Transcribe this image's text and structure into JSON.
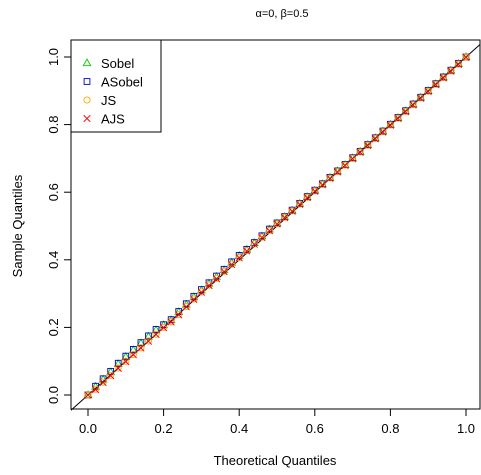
{
  "chart_data": {
    "type": "scatter",
    "title": "α=0, β=0.5",
    "xlabel": "Theoretical Quantiles",
    "ylabel": "Sample Quantiles",
    "xlim": [
      0,
      1
    ],
    "ylim": [
      0,
      1
    ],
    "xticks": [
      "0.0",
      "0.2",
      "0.4",
      "0.6",
      "0.8",
      "1.0"
    ],
    "yticks": [
      "0.0",
      "0.2",
      "0.4",
      "0.6",
      "0.8",
      "1.0"
    ],
    "reference_line": {
      "slope": 1,
      "intercept": 0,
      "color": "#000000"
    },
    "legend_position": "top-left",
    "x": [
      0.0,
      0.02,
      0.04,
      0.06,
      0.08,
      0.1,
      0.12,
      0.14,
      0.16,
      0.18,
      0.2,
      0.22,
      0.24,
      0.26,
      0.28,
      0.3,
      0.32,
      0.34,
      0.36,
      0.38,
      0.4,
      0.42,
      0.44,
      0.46,
      0.48,
      0.5,
      0.52,
      0.54,
      0.56,
      0.58,
      0.6,
      0.62,
      0.64,
      0.66,
      0.68,
      0.7,
      0.72,
      0.74,
      0.76,
      0.78,
      0.8,
      0.82,
      0.84,
      0.86,
      0.88,
      0.9,
      0.92,
      0.94,
      0.96,
      0.98,
      1.0
    ],
    "series": [
      {
        "name": "Sobel",
        "marker": "triangle",
        "color": "#00cc00",
        "values": [
          0.0,
          0.025,
          0.046,
          0.068,
          0.092,
          0.113,
          0.133,
          0.153,
          0.173,
          0.192,
          0.207,
          0.222,
          0.246,
          0.268,
          0.29,
          0.31,
          0.33,
          0.35,
          0.37,
          0.392,
          0.412,
          0.43,
          0.45,
          0.47,
          0.49,
          0.508,
          0.527,
          0.546,
          0.566,
          0.586,
          0.605,
          0.624,
          0.643,
          0.662,
          0.681,
          0.701,
          0.72,
          0.74,
          0.76,
          0.78,
          0.8,
          0.82,
          0.84,
          0.86,
          0.88,
          0.9,
          0.92,
          0.94,
          0.96,
          0.98,
          1.0
        ]
      },
      {
        "name": "ASobel",
        "marker": "square",
        "color": "#0000cc",
        "values": [
          0.0,
          0.026,
          0.048,
          0.07,
          0.094,
          0.115,
          0.135,
          0.155,
          0.175,
          0.194,
          0.208,
          0.223,
          0.247,
          0.27,
          0.292,
          0.312,
          0.332,
          0.352,
          0.372,
          0.394,
          0.413,
          0.431,
          0.451,
          0.471,
          0.491,
          0.509,
          0.528,
          0.547,
          0.567,
          0.587,
          0.606,
          0.625,
          0.644,
          0.663,
          0.682,
          0.702,
          0.721,
          0.741,
          0.761,
          0.781,
          0.801,
          0.821,
          0.841,
          0.861,
          0.881,
          0.901,
          0.921,
          0.941,
          0.961,
          0.981,
          1.0
        ]
      },
      {
        "name": "JS",
        "marker": "circle",
        "color": "#ffa500",
        "values": [
          0.0,
          0.017,
          0.038,
          0.058,
          0.08,
          0.1,
          0.12,
          0.14,
          0.16,
          0.18,
          0.2,
          0.217,
          0.238,
          0.262,
          0.284,
          0.305,
          0.325,
          0.345,
          0.366,
          0.387,
          0.407,
          0.427,
          0.447,
          0.467,
          0.487,
          0.507,
          0.526,
          0.545,
          0.565,
          0.585,
          0.604,
          0.623,
          0.642,
          0.661,
          0.68,
          0.7,
          0.719,
          0.739,
          0.759,
          0.779,
          0.799,
          0.819,
          0.839,
          0.859,
          0.879,
          0.899,
          0.919,
          0.939,
          0.959,
          0.979,
          1.0
        ]
      },
      {
        "name": "AJS",
        "marker": "x",
        "color": "#ff0000",
        "values": [
          0.0,
          0.016,
          0.037,
          0.057,
          0.079,
          0.099,
          0.119,
          0.139,
          0.159,
          0.179,
          0.199,
          0.216,
          0.237,
          0.261,
          0.283,
          0.304,
          0.324,
          0.344,
          0.365,
          0.386,
          0.406,
          0.426,
          0.446,
          0.466,
          0.486,
          0.506,
          0.525,
          0.544,
          0.564,
          0.584,
          0.603,
          0.622,
          0.641,
          0.66,
          0.679,
          0.699,
          0.718,
          0.738,
          0.758,
          0.778,
          0.798,
          0.818,
          0.838,
          0.858,
          0.878,
          0.898,
          0.918,
          0.938,
          0.958,
          0.978,
          0.999
        ]
      }
    ]
  }
}
